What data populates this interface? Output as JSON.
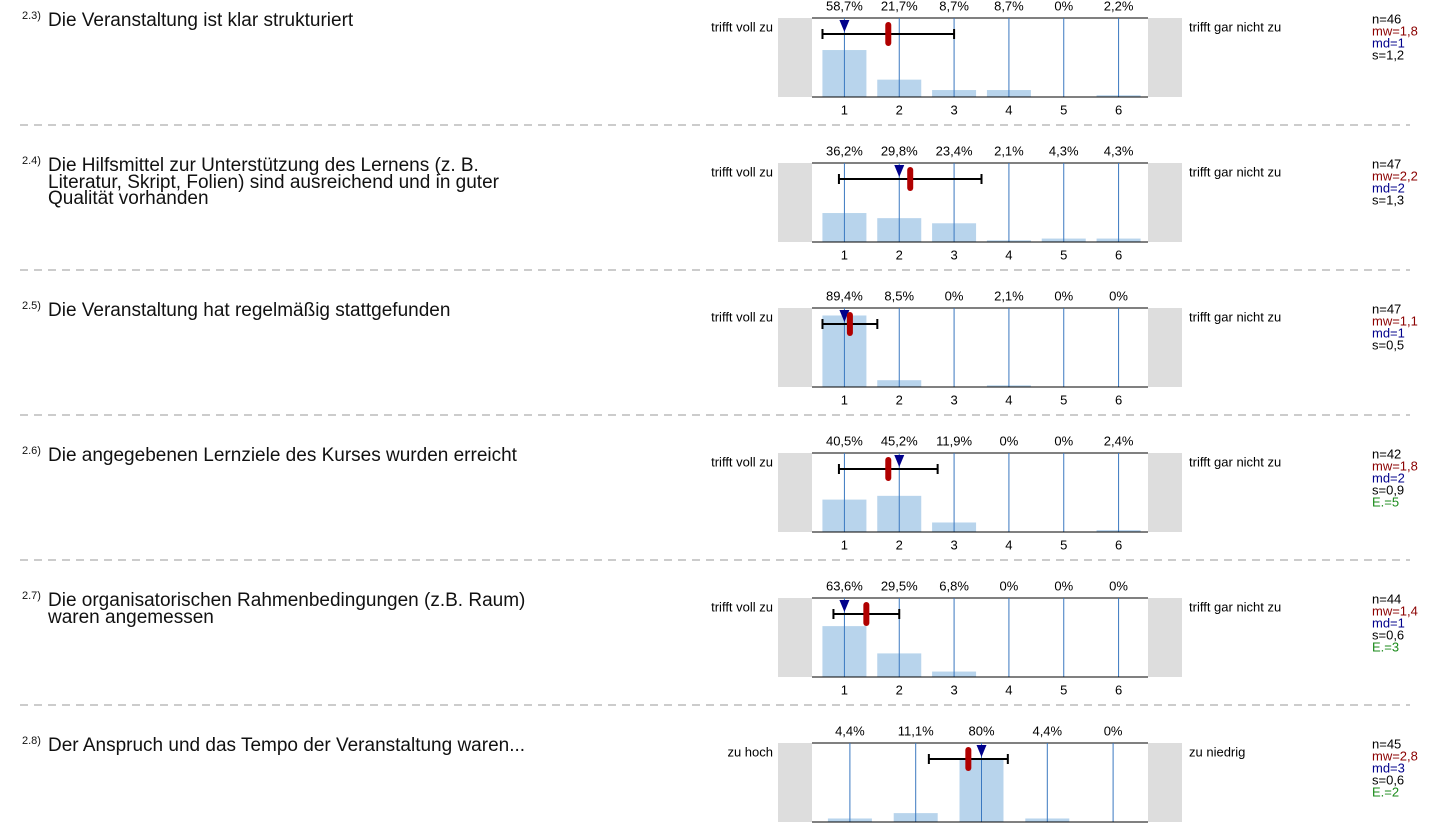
{
  "items": [
    {
      "number": "2.3)",
      "question": "Die Veranstaltung ist klar strukturiert",
      "left_label": "trifft voll zu",
      "right_label": "trifft gar nicht zu",
      "categories": [
        "1",
        "2",
        "3",
        "4",
        "5",
        "6"
      ],
      "values": [
        58.7,
        21.7,
        8.7,
        8.7,
        0,
        2.2
      ],
      "value_labels": [
        "58,7%",
        "21,7%",
        "8,7%",
        "8,7%",
        "0%",
        "2,2%"
      ],
      "n": "n=46",
      "mean": {
        "value": 1.8,
        "label": "mw=1,8"
      },
      "median": {
        "value": 1,
        "label": "md=1"
      },
      "sd": {
        "value": 1.2,
        "label": "s=1,2"
      }
    },
    {
      "number": "2.4)",
      "question": "Die Hilfsmittel zur Unterstützung des Lernens (z. B. Literatur, Skript, Folien) sind ausreichend und in guter Qualität vorhanden",
      "left_label": "trifft voll zu",
      "right_label": "trifft gar nicht zu",
      "categories": [
        "1",
        "2",
        "3",
        "4",
        "5",
        "6"
      ],
      "values": [
        36.2,
        29.8,
        23.4,
        2.1,
        4.3,
        4.3
      ],
      "value_labels": [
        "36,2%",
        "29,8%",
        "23,4%",
        "2,1%",
        "4,3%",
        "4,3%"
      ],
      "n": "n=47",
      "mean": {
        "value": 2.2,
        "label": "mw=2,2"
      },
      "median": {
        "value": 2,
        "label": "md=2"
      },
      "sd": {
        "value": 1.3,
        "label": "s=1,3"
      }
    },
    {
      "number": "2.5)",
      "question": "Die Veranstaltung hat regelmäßig stattgefunden",
      "left_label": "trifft voll zu",
      "right_label": "trifft gar nicht zu",
      "categories": [
        "1",
        "2",
        "3",
        "4",
        "5",
        "6"
      ],
      "values": [
        89.4,
        8.5,
        0,
        2.1,
        0,
        0
      ],
      "value_labels": [
        "89,4%",
        "8,5%",
        "0%",
        "2,1%",
        "0%",
        "0%"
      ],
      "n": "n=47",
      "mean": {
        "value": 1.1,
        "label": "mw=1,1"
      },
      "median": {
        "value": 1,
        "label": "md=1"
      },
      "sd": {
        "value": 0.5,
        "label": "s=0,5"
      }
    },
    {
      "number": "2.6)",
      "question": "Die angegebenen Lernziele des Kurses wurden erreicht",
      "left_label": "trifft voll zu",
      "right_label": "trifft gar nicht zu",
      "categories": [
        "1",
        "2",
        "3",
        "4",
        "5",
        "6"
      ],
      "values": [
        40.5,
        45.2,
        11.9,
        0,
        0,
        2.4
      ],
      "value_labels": [
        "40,5%",
        "45,2%",
        "11,9%",
        "0%",
        "0%",
        "2,4%"
      ],
      "n": "n=42",
      "mean": {
        "value": 1.8,
        "label": "mw=1,8"
      },
      "median": {
        "value": 2,
        "label": "md=2"
      },
      "sd": {
        "value": 0.9,
        "label": "s=0,9"
      },
      "abstentions": "E.=5"
    },
    {
      "number": "2.7)",
      "question": "Die organisatorischen Rahmenbedingungen (z.B. Raum) waren angemessen",
      "left_label": "trifft voll zu",
      "right_label": "trifft gar nicht zu",
      "categories": [
        "1",
        "2",
        "3",
        "4",
        "5",
        "6"
      ],
      "values": [
        63.6,
        29.5,
        6.8,
        0,
        0,
        0
      ],
      "value_labels": [
        "63,6%",
        "29,5%",
        "6,8%",
        "0%",
        "0%",
        "0%"
      ],
      "n": "n=44",
      "mean": {
        "value": 1.4,
        "label": "mw=1,4"
      },
      "median": {
        "value": 1,
        "label": "md=1"
      },
      "sd": {
        "value": 0.6,
        "label": "s=0,6"
      },
      "abstentions": "E.=3"
    },
    {
      "number": "2.8)",
      "question": "Der Anspruch und das Tempo der Veranstaltung waren...",
      "left_label": "zu hoch",
      "right_label": "zu niedrig",
      "values": [
        4.4,
        11.1,
        80,
        4.4,
        0
      ],
      "value_labels": [
        "4,4%",
        "11,1%",
        "80%",
        "4,4%",
        "0%"
      ],
      "n": "n=45",
      "mean": {
        "value": 2.8,
        "label": "mw=2,8"
      },
      "median": {
        "value": 3,
        "label": "md=3"
      },
      "sd": {
        "value": 0.6,
        "label": "s=0,6"
      },
      "abstentions": "E.=2"
    }
  ]
}
